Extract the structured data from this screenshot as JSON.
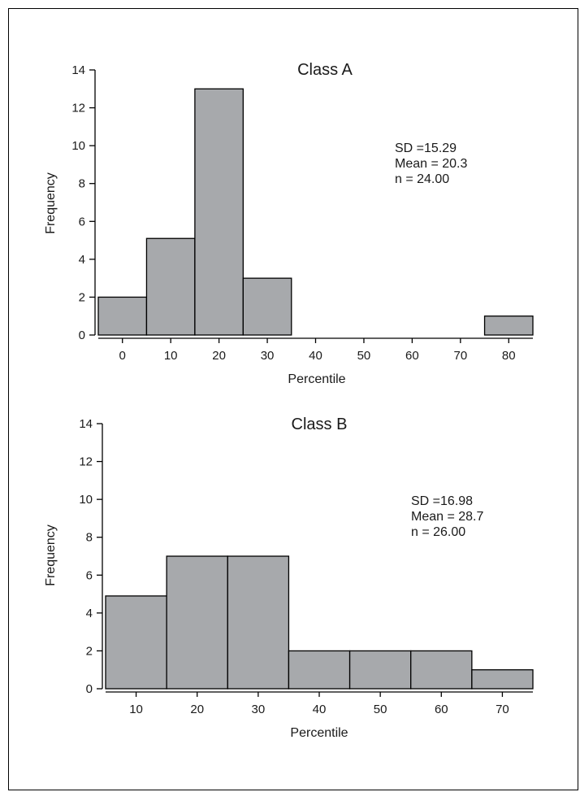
{
  "chart_data": [
    {
      "type": "bar",
      "title": "Class A",
      "xlabel": "Percentile",
      "ylabel": "Frequency",
      "ylim": [
        0,
        14
      ],
      "yticks": [
        0,
        2,
        4,
        6,
        8,
        10,
        12,
        14
      ],
      "xticks": [
        0,
        10,
        20,
        30,
        40,
        50,
        60,
        70,
        80
      ],
      "xlim": [
        -5,
        85
      ],
      "bins": [
        {
          "center": 0,
          "value": 2
        },
        {
          "center": 10,
          "value": 5.1
        },
        {
          "center": 20,
          "value": 13
        },
        {
          "center": 30,
          "value": 3
        },
        {
          "center": 80,
          "value": 1
        }
      ],
      "bin_width": 10,
      "stats": [
        "SD =15.29",
        "Mean = 20.3",
        "n = 24.00"
      ]
    },
    {
      "type": "bar",
      "title": "Class B",
      "xlabel": "Percentile",
      "ylabel": "Frequency",
      "ylim": [
        0,
        14
      ],
      "yticks": [
        0,
        2,
        4,
        6,
        8,
        10,
        12,
        14
      ],
      "xticks": [
        10,
        20,
        30,
        40,
        50,
        60,
        70
      ],
      "xlim": [
        5,
        75
      ],
      "bins": [
        {
          "center": 10,
          "value": 4.9
        },
        {
          "center": 20,
          "value": 7
        },
        {
          "center": 30,
          "value": 7
        },
        {
          "center": 40,
          "value": 2
        },
        {
          "center": 50,
          "value": 2
        },
        {
          "center": 60,
          "value": 2
        },
        {
          "center": 70,
          "value": 1
        }
      ],
      "bin_width": 10,
      "stats": [
        "SD =16.98",
        "Mean = 28.7",
        "n = 26.00"
      ]
    }
  ]
}
